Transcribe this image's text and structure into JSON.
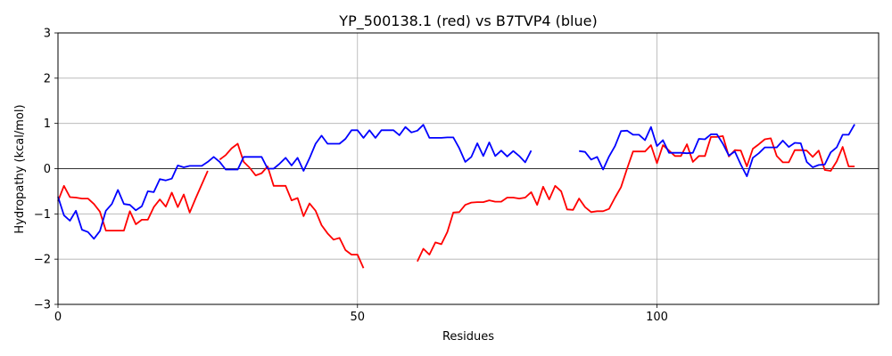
{
  "chart_data": {
    "type": "line",
    "title": "YP_500138.1 (red) vs B7TVP4 (blue)",
    "xlabel": "Residues",
    "ylabel": "Hydropathy (kcal/mol)",
    "xlim": [
      0,
      137
    ],
    "ylim": [
      -3,
      3
    ],
    "xticks": [
      0,
      50,
      100
    ],
    "yticks": [
      -3,
      -2,
      -1,
      0,
      1,
      2,
      3
    ],
    "grid": true,
    "zero_line": true,
    "series": [
      {
        "color": "#ff0000",
        "points": [
          [
            0,
            -0.72
          ],
          [
            1,
            -0.38
          ],
          [
            2,
            -0.63
          ],
          [
            3,
            -0.64
          ],
          [
            4,
            -0.66
          ],
          [
            5,
            -0.66
          ],
          [
            6,
            -0.78
          ],
          [
            7,
            -0.95
          ],
          [
            8,
            -1.37
          ],
          [
            9,
            -1.37
          ],
          [
            10,
            -1.37
          ],
          [
            11,
            -1.37
          ],
          [
            12,
            -0.94
          ],
          [
            13,
            -1.23
          ],
          [
            14,
            -1.13
          ],
          [
            15,
            -1.13
          ],
          [
            16,
            -0.85
          ],
          [
            17,
            -0.68
          ],
          [
            18,
            -0.84
          ],
          [
            19,
            -0.53
          ],
          [
            20,
            -0.85
          ],
          [
            21,
            -0.57
          ],
          [
            22,
            -0.97
          ],
          [
            23,
            -0.65
          ],
          [
            24,
            -0.35
          ],
          [
            25,
            -0.05
          ],
          null,
          [
            27,
            0.2
          ],
          [
            28,
            0.3
          ],
          [
            29,
            0.45
          ],
          [
            30,
            0.55
          ],
          [
            31,
            0.15
          ],
          [
            32,
            0.02
          ],
          [
            33,
            -0.15
          ],
          [
            34,
            -0.1
          ],
          [
            35,
            0.05
          ],
          [
            36,
            -0.38
          ],
          [
            37,
            -0.38
          ],
          [
            38,
            -0.38
          ],
          [
            39,
            -0.7
          ],
          [
            40,
            -0.65
          ],
          [
            41,
            -1.05
          ],
          [
            42,
            -0.77
          ],
          [
            43,
            -0.93
          ],
          [
            44,
            -1.25
          ],
          [
            45,
            -1.43
          ],
          [
            46,
            -1.57
          ],
          [
            47,
            -1.53
          ],
          [
            48,
            -1.8
          ],
          [
            49,
            -1.9
          ],
          [
            50,
            -1.9
          ],
          [
            51,
            -2.2
          ],
          null,
          [
            60,
            -2.05
          ],
          [
            61,
            -1.77
          ],
          [
            62,
            -1.9
          ],
          [
            63,
            -1.63
          ],
          [
            64,
            -1.67
          ],
          [
            65,
            -1.4
          ],
          [
            66,
            -0.97
          ],
          [
            67,
            -0.96
          ],
          [
            68,
            -0.8
          ],
          [
            69,
            -0.75
          ],
          [
            70,
            -0.74
          ],
          [
            71,
            -0.74
          ],
          [
            72,
            -0.7
          ],
          [
            73,
            -0.73
          ],
          [
            74,
            -0.73
          ],
          [
            75,
            -0.64
          ],
          [
            76,
            -0.64
          ],
          [
            77,
            -0.66
          ],
          [
            78,
            -0.64
          ],
          [
            79,
            -0.52
          ],
          [
            80,
            -0.8
          ],
          [
            81,
            -0.4
          ],
          [
            82,
            -0.68
          ],
          [
            83,
            -0.38
          ],
          [
            84,
            -0.5
          ],
          [
            85,
            -0.9
          ],
          [
            86,
            -0.91
          ],
          [
            87,
            -0.66
          ],
          [
            88,
            -0.85
          ],
          [
            89,
            -0.96
          ],
          [
            90,
            -0.94
          ],
          [
            91,
            -0.94
          ],
          [
            92,
            -0.89
          ],
          [
            93,
            -0.64
          ],
          [
            94,
            -0.41
          ],
          [
            95,
            0.0
          ],
          [
            96,
            0.38
          ],
          [
            97,
            0.38
          ],
          [
            98,
            0.38
          ],
          [
            99,
            0.52
          ],
          [
            100,
            0.12
          ],
          [
            101,
            0.52
          ],
          [
            102,
            0.4
          ],
          [
            103,
            0.28
          ],
          [
            104,
            0.28
          ],
          [
            105,
            0.54
          ],
          [
            106,
            0.15
          ],
          [
            107,
            0.28
          ],
          [
            108,
            0.28
          ],
          [
            109,
            0.7
          ],
          [
            110,
            0.7
          ],
          [
            111,
            0.72
          ],
          [
            112,
            0.27
          ],
          [
            113,
            0.41
          ],
          [
            114,
            0.4
          ],
          [
            115,
            0.05
          ],
          [
            116,
            0.44
          ],
          [
            117,
            0.54
          ],
          [
            118,
            0.65
          ],
          [
            119,
            0.67
          ],
          [
            120,
            0.28
          ],
          [
            121,
            0.14
          ],
          [
            122,
            0.14
          ],
          [
            123,
            0.41
          ],
          [
            124,
            0.41
          ],
          [
            125,
            0.4
          ],
          [
            126,
            0.26
          ],
          [
            127,
            0.4
          ],
          [
            128,
            -0.03
          ],
          [
            129,
            -0.05
          ],
          [
            130,
            0.16
          ],
          [
            131,
            0.48
          ],
          [
            132,
            0.05
          ],
          [
            133,
            0.05
          ]
        ]
      },
      {
        "color": "#0000ff",
        "points": [
          [
            0,
            -0.62
          ],
          [
            1,
            -1.03
          ],
          [
            2,
            -1.15
          ],
          [
            3,
            -0.93
          ],
          [
            4,
            -1.35
          ],
          [
            5,
            -1.4
          ],
          [
            6,
            -1.55
          ],
          [
            7,
            -1.38
          ],
          [
            8,
            -0.93
          ],
          [
            9,
            -0.78
          ],
          [
            10,
            -0.47
          ],
          [
            11,
            -0.78
          ],
          [
            12,
            -0.8
          ],
          [
            13,
            -0.92
          ],
          [
            14,
            -0.83
          ],
          [
            15,
            -0.5
          ],
          [
            16,
            -0.52
          ],
          [
            17,
            -0.23
          ],
          [
            18,
            -0.26
          ],
          [
            19,
            -0.22
          ],
          [
            20,
            0.07
          ],
          [
            21,
            0.03
          ],
          [
            22,
            0.06
          ],
          [
            23,
            0.06
          ],
          [
            24,
            0.06
          ],
          [
            25,
            0.15
          ],
          [
            26,
            0.26
          ],
          [
            27,
            0.15
          ],
          [
            28,
            -0.02
          ],
          [
            29,
            -0.02
          ],
          [
            30,
            -0.02
          ],
          [
            31,
            0.26
          ],
          [
            32,
            0.26
          ],
          [
            33,
            0.26
          ],
          [
            34,
            0.26
          ],
          [
            35,
            0.0
          ],
          [
            36,
            0.0
          ],
          [
            37,
            0.11
          ],
          [
            38,
            0.24
          ],
          [
            39,
            0.07
          ],
          [
            40,
            0.24
          ],
          [
            41,
            -0.05
          ],
          [
            42,
            0.23
          ],
          [
            43,
            0.55
          ],
          [
            44,
            0.73
          ],
          [
            45,
            0.55
          ],
          [
            46,
            0.55
          ],
          [
            47,
            0.55
          ],
          [
            48,
            0.66
          ],
          [
            49,
            0.85
          ],
          [
            50,
            0.85
          ],
          [
            51,
            0.68
          ],
          [
            52,
            0.85
          ],
          [
            53,
            0.68
          ],
          [
            54,
            0.85
          ],
          [
            55,
            0.85
          ],
          [
            56,
            0.85
          ],
          [
            57,
            0.74
          ],
          [
            58,
            0.92
          ],
          [
            59,
            0.8
          ],
          [
            60,
            0.84
          ],
          [
            61,
            0.97
          ],
          [
            62,
            0.68
          ],
          [
            63,
            0.68
          ],
          [
            64,
            0.68
          ],
          [
            65,
            0.69
          ],
          [
            66,
            0.69
          ],
          [
            67,
            0.45
          ],
          [
            68,
            0.15
          ],
          [
            69,
            0.26
          ],
          [
            70,
            0.56
          ],
          [
            71,
            0.28
          ],
          [
            72,
            0.58
          ],
          [
            73,
            0.28
          ],
          [
            74,
            0.4
          ],
          [
            75,
            0.27
          ],
          [
            76,
            0.39
          ],
          [
            77,
            0.28
          ],
          [
            78,
            0.14
          ],
          [
            79,
            0.4
          ],
          null,
          [
            87,
            0.39
          ],
          [
            88,
            0.37
          ],
          [
            89,
            0.2
          ],
          [
            90,
            0.26
          ],
          [
            91,
            -0.02
          ],
          [
            92,
            0.27
          ],
          [
            93,
            0.5
          ],
          [
            94,
            0.83
          ],
          [
            95,
            0.84
          ],
          [
            96,
            0.75
          ],
          [
            97,
            0.75
          ],
          [
            98,
            0.63
          ],
          [
            99,
            0.92
          ],
          [
            100,
            0.5
          ],
          [
            101,
            0.63
          ],
          [
            102,
            0.35
          ],
          [
            103,
            0.35
          ],
          [
            104,
            0.35
          ],
          [
            105,
            0.34
          ],
          [
            106,
            0.35
          ],
          [
            107,
            0.66
          ],
          [
            108,
            0.65
          ],
          [
            109,
            0.76
          ],
          [
            110,
            0.76
          ],
          [
            111,
            0.55
          ],
          [
            112,
            0.29
          ],
          [
            113,
            0.38
          ],
          [
            114,
            0.09
          ],
          [
            115,
            -0.17
          ],
          [
            116,
            0.24
          ],
          [
            117,
            0.34
          ],
          [
            118,
            0.47
          ],
          [
            119,
            0.47
          ],
          [
            120,
            0.47
          ],
          [
            121,
            0.62
          ],
          [
            122,
            0.48
          ],
          [
            123,
            0.57
          ],
          [
            124,
            0.56
          ],
          [
            125,
            0.15
          ],
          [
            126,
            0.03
          ],
          [
            127,
            0.08
          ],
          [
            128,
            0.09
          ],
          [
            129,
            0.36
          ],
          [
            130,
            0.47
          ],
          [
            131,
            0.75
          ],
          [
            132,
            0.75
          ],
          [
            133,
            0.98
          ]
        ]
      }
    ]
  }
}
